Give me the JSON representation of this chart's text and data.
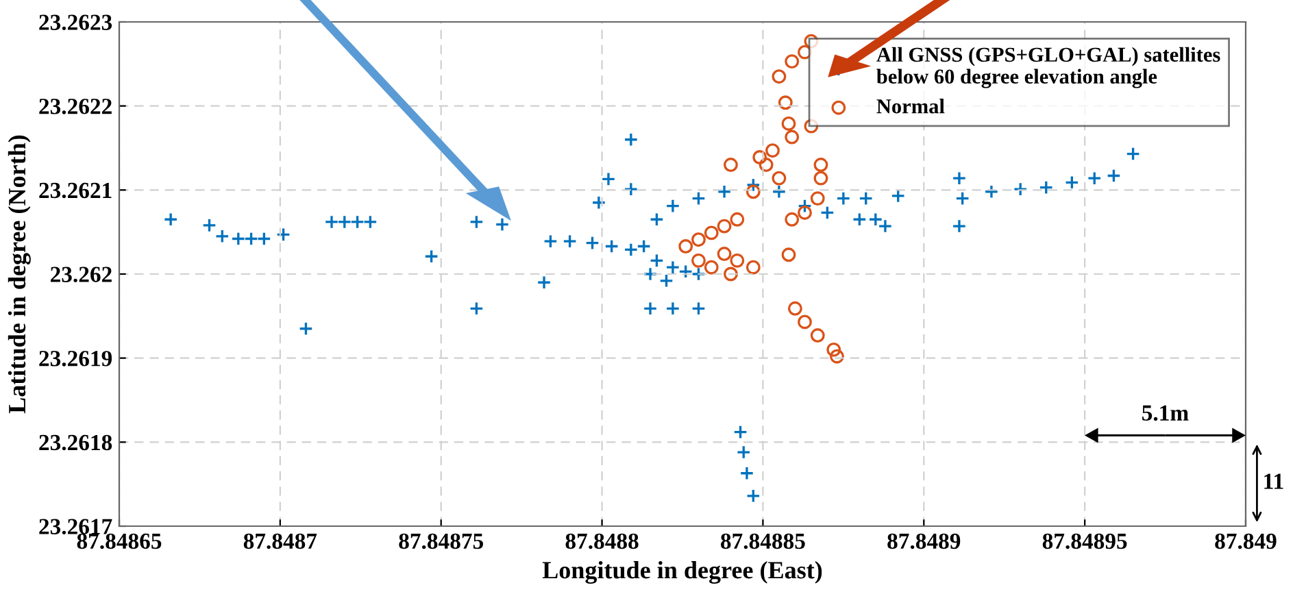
{
  "chart_data": {
    "type": "scatter",
    "xlabel": "Longitude in degree (East)",
    "ylabel": "Latitude in degree (North)",
    "xlim": [
      87.84865,
      87.849
    ],
    "xticks": [
      87.84865,
      87.8487,
      87.84875,
      87.8488,
      87.84885,
      87.8489,
      87.84895,
      87.849
    ],
    "ylim": [
      23.2617,
      23.2623
    ],
    "yticks": [
      23.2617,
      23.2618,
      23.2619,
      23.262,
      23.2621,
      23.2622,
      23.2623
    ],
    "grid": true,
    "legend": "top right",
    "annotations": [
      "5.1m",
      "11"
    ],
    "series": [
      {
        "name": "All GNSS (GPS+GLO+GAL) satellites\nbelow 60 degree elevation angle",
        "color": "#0072bd",
        "marker": "cross",
        "x": [
          87.848666,
          87.848678,
          87.848682,
          87.848687,
          87.848691,
          87.848695,
          87.848701,
          87.848708,
          87.848716,
          87.84872,
          87.848724,
          87.848728,
          87.848747,
          87.848761,
          87.848761,
          87.848769,
          87.848782,
          87.848784,
          87.84879,
          87.848797,
          87.848803,
          87.848809,
          87.848799,
          87.848802,
          87.848809,
          87.848809,
          87.848813,
          87.848817,
          87.848822,
          87.848826,
          87.84883,
          87.848817,
          87.848822,
          87.84883,
          87.848838,
          87.848847,
          87.848855,
          87.848863,
          87.84887,
          87.84888,
          87.848815,
          87.84882,
          87.848815,
          87.848822,
          87.84883,
          87.848843,
          87.848844,
          87.848845,
          87.848847,
          87.848875,
          87.848882,
          87.848892,
          87.848911,
          87.848912,
          87.848921,
          87.84893,
          87.848938,
          87.848946,
          87.848953,
          87.848959,
          87.848965,
          87.848911,
          87.848885,
          87.848888
        ],
        "values": [
          23.262065,
          23.262058,
          23.262045,
          23.262042,
          23.262042,
          23.262042,
          23.262047,
          23.261935,
          23.262062,
          23.262062,
          23.262062,
          23.262062,
          23.262021,
          23.261959,
          23.262062,
          23.262059,
          23.26199,
          23.262039,
          23.262039,
          23.262037,
          23.262033,
          23.262029,
          23.262085,
          23.262113,
          23.26216,
          23.262101,
          23.262033,
          23.262016,
          23.262008,
          23.262003,
          23.262,
          23.262065,
          23.262081,
          23.26209,
          23.262098,
          23.262106,
          23.262098,
          23.262081,
          23.262073,
          23.262065,
          23.262,
          23.261992,
          23.261959,
          23.261959,
          23.261959,
          23.261812,
          23.261788,
          23.261763,
          23.261736,
          23.26209,
          23.26209,
          23.262093,
          23.262114,
          23.26209,
          23.262098,
          23.262101,
          23.262103,
          23.262109,
          23.262114,
          23.262117,
          23.262143,
          23.262057,
          23.262065,
          23.262057
        ]
      },
      {
        "name": "Normal",
        "color": "#d95319",
        "marker": "circle",
        "x": [
          87.848855,
          87.848859,
          87.848863,
          87.848865,
          87.848857,
          87.848858,
          87.848859,
          87.848865,
          87.848868,
          87.848868,
          87.848867,
          87.848863,
          87.848859,
          87.848826,
          87.84883,
          87.848834,
          87.848838,
          87.848842,
          87.848838,
          87.848842,
          87.848847,
          87.84884,
          87.84883,
          87.848834,
          87.848849,
          87.848851,
          87.848853,
          87.848855,
          87.848847,
          87.84884,
          87.84886,
          87.848863,
          87.848867,
          87.848872,
          87.848873,
          87.848858
        ],
        "values": [
          23.262235,
          23.262253,
          23.262264,
          23.262277,
          23.262204,
          23.262179,
          23.262163,
          23.262176,
          23.26213,
          23.262114,
          23.26209,
          23.262073,
          23.262065,
          23.262033,
          23.262041,
          23.262049,
          23.262057,
          23.262065,
          23.262024,
          23.262016,
          23.262008,
          23.262,
          23.262016,
          23.262008,
          23.262139,
          23.26213,
          23.262147,
          23.262114,
          23.262098,
          23.26213,
          23.261959,
          23.261943,
          23.261927,
          23.26191,
          23.261902,
          23.262023
        ]
      }
    ]
  }
}
